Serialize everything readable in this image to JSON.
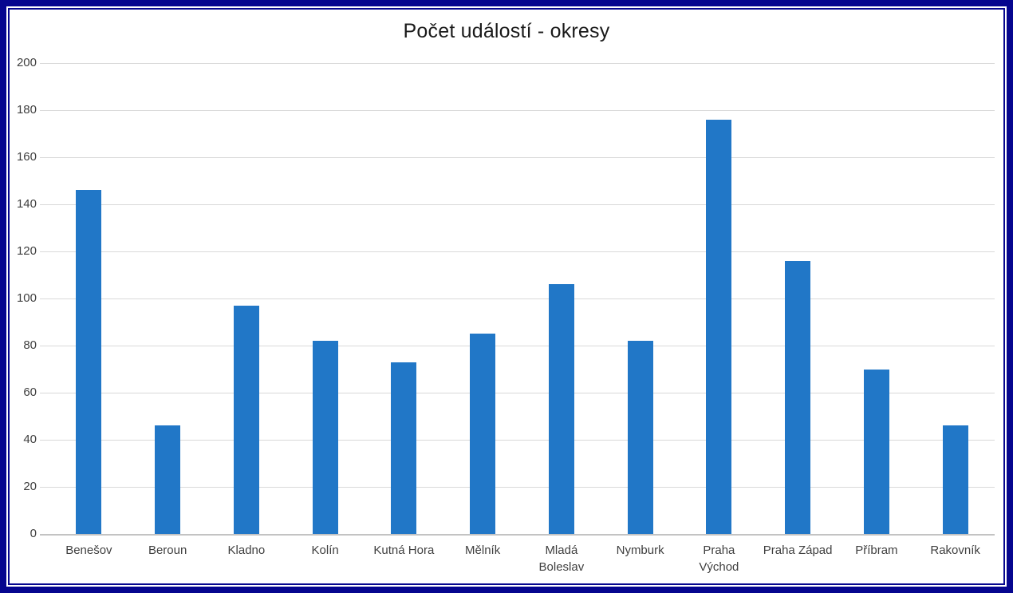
{
  "frame": {
    "border_color": "#06068F",
    "background": "#FFFFFF"
  },
  "chart_data": {
    "type": "bar",
    "title": "Počet událostí - okresy",
    "categories": [
      "Benešov",
      "Beroun",
      "Kladno",
      "Kolín",
      "Kutná Hora",
      "Mělník",
      "Mladá Boleslav",
      "Nymburk",
      "Praha Východ",
      "Praha Západ",
      "Příbram",
      "Rakovník"
    ],
    "category_lines": [
      [
        "Benešov"
      ],
      [
        "Beroun"
      ],
      [
        "Kladno"
      ],
      [
        "Kolín"
      ],
      [
        "Kutná Hora"
      ],
      [
        "Mělník"
      ],
      [
        "Mladá",
        "Boleslav"
      ],
      [
        "Nymburk"
      ],
      [
        "Praha",
        "Východ"
      ],
      [
        "Praha Západ"
      ],
      [
        "Příbram"
      ],
      [
        "Rakovník"
      ]
    ],
    "values": [
      146,
      46,
      97,
      82,
      73,
      85,
      106,
      82,
      176,
      116,
      70,
      46
    ],
    "xlabel": "",
    "ylabel": "",
    "ylim": [
      0,
      200
    ],
    "yticks": [
      0,
      20,
      40,
      60,
      80,
      100,
      120,
      140,
      160,
      180,
      200
    ],
    "grid": true,
    "legend_position": "none",
    "bar_color": "#2177C7",
    "gridline_color": "#D9D9D9",
    "axis_line_color": "#C3C3C3",
    "label_color": "#3F3F3F",
    "title_color": "#1A1A1A"
  }
}
